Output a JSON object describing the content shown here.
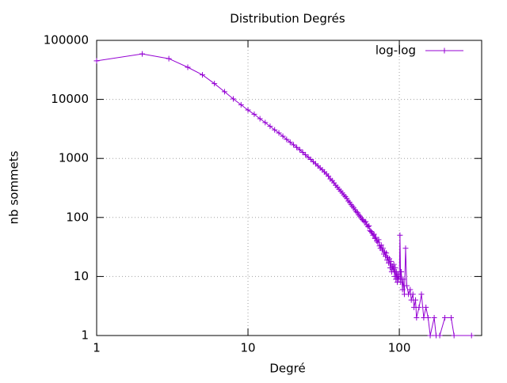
{
  "chart_data": {
    "type": "line",
    "title": "Distribution Degrés",
    "xlabel": "Degré",
    "ylabel": "nb sommets",
    "xscale": "log",
    "yscale": "log",
    "grid": true,
    "legend": "top-right",
    "xlim": [
      1,
      350
    ],
    "ylim": [
      1,
      100000
    ],
    "xticks": [
      1,
      10,
      100
    ],
    "yticks": [
      1,
      10,
      100,
      1000,
      10000,
      100000
    ],
    "x": [
      1,
      2,
      3,
      4,
      5,
      6,
      7,
      8,
      9,
      10,
      11,
      12,
      13,
      14,
      15,
      16,
      17,
      18,
      19,
      20,
      21,
      22,
      23,
      24,
      25,
      26,
      27,
      28,
      29,
      30,
      31,
      32,
      33,
      34,
      35,
      36,
      37,
      38,
      39,
      40,
      41,
      42,
      43,
      44,
      45,
      46,
      47,
      48,
      49,
      50,
      51,
      52,
      53,
      54,
      55,
      56,
      57,
      58,
      59,
      60,
      61,
      62,
      63,
      64,
      65,
      66,
      67,
      68,
      69,
      70,
      71,
      72,
      73,
      74,
      75,
      76,
      77,
      78,
      79,
      80,
      81,
      82,
      83,
      84,
      85,
      86,
      87,
      88,
      89,
      90,
      91,
      92,
      93,
      94,
      95,
      96,
      97,
      98,
      99,
      100,
      101,
      102,
      103,
      105,
      106,
      108,
      110,
      112,
      115,
      118,
      120,
      123,
      125,
      128,
      130,
      135,
      140,
      145,
      150,
      155,
      160,
      170,
      175,
      185,
      200,
      220,
      230,
      300
    ],
    "series": [
      {
        "name": "log-log",
        "color": "#9400d3",
        "values": [
          45000,
          59000,
          49000,
          35000,
          26000,
          18500,
          13500,
          10200,
          8100,
          6600,
          5600,
          4700,
          4050,
          3500,
          3050,
          2700,
          2380,
          2100,
          1880,
          1700,
          1540,
          1400,
          1270,
          1150,
          1050,
          960,
          880,
          810,
          745,
          690,
          640,
          590,
          545,
          500,
          450,
          420,
          385,
          350,
          325,
          300,
          280,
          260,
          240,
          225,
          210,
          190,
          180,
          165,
          155,
          145,
          135,
          125,
          120,
          110,
          105,
          98,
          92,
          88,
          84,
          85,
          75,
          70,
          72,
          60,
          58,
          55,
          50,
          52,
          44,
          46,
          40,
          38,
          42,
          33,
          30,
          34,
          28,
          30,
          24,
          26,
          22,
          25,
          19,
          21,
          17,
          20,
          14,
          18,
          12,
          15,
          13,
          16,
          10,
          14,
          9,
          12,
          8,
          11,
          9,
          10,
          50,
          8,
          12,
          6,
          9,
          5,
          30,
          7,
          5,
          6,
          4,
          5,
          3,
          4,
          2,
          3,
          5,
          2,
          3,
          2,
          1,
          2,
          1,
          1,
          2,
          2,
          1,
          1
        ]
      }
    ]
  }
}
